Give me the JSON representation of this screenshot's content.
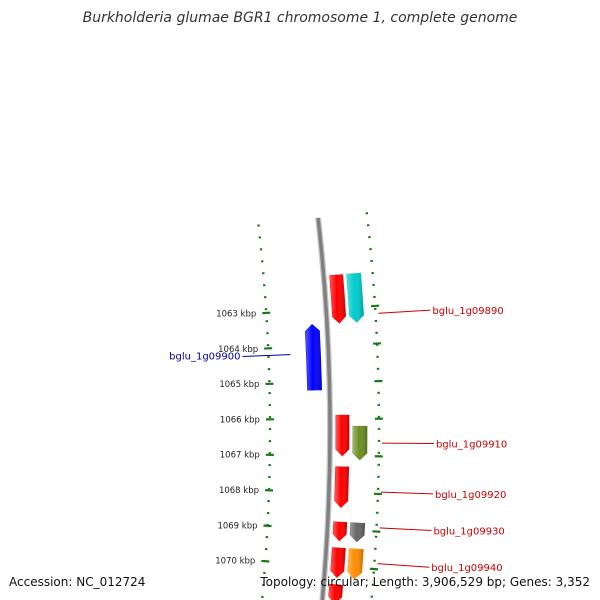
{
  "title": "Burkholderia glumae BGR1 chromosome 1, complete genome",
  "footer": {
    "accession": "Accession: NC_012724",
    "info": "Topology: circular; Length: 3,906,529 bp; Genes: 3,352"
  },
  "colors": {
    "backbone": "#808080",
    "tick": "#1a7a1a",
    "label_red": "#cc0000",
    "label_blue": "#000099"
  },
  "ticks": [
    {
      "kbp": 1063,
      "label": "1063 kbp"
    },
    {
      "kbp": 1064,
      "label": "1064 kbp"
    },
    {
      "kbp": 1065,
      "label": "1065 kbp"
    },
    {
      "kbp": 1066,
      "label": "1066 kbp"
    },
    {
      "kbp": 1067,
      "label": "1067 kbp"
    },
    {
      "kbp": 1068,
      "label": "1068 kbp"
    },
    {
      "kbp": 1069,
      "label": "1069 kbp"
    },
    {
      "kbp": 1070,
      "label": "1070 kbp"
    }
  ],
  "features": [
    {
      "type": "gene",
      "strand": "+",
      "start_kbp": 1062.1,
      "end_kbp": 1063.4,
      "color": "#ff0000"
    },
    {
      "type": "cds",
      "strand": "+",
      "start_kbp": 1062.1,
      "end_kbp": 1063.4,
      "color": "#00cccc"
    },
    {
      "type": "gene",
      "strand": "-",
      "start_kbp": 1063.4,
      "end_kbp": 1065.2,
      "color": "#0000ff"
    },
    {
      "type": "gene",
      "strand": "+",
      "start_kbp": 1065.9,
      "end_kbp": 1067.0,
      "color": "#ff0000"
    },
    {
      "type": "cds",
      "strand": "+",
      "start_kbp": 1066.2,
      "end_kbp": 1067.1,
      "color": "#6b8e23"
    },
    {
      "type": "gene",
      "strand": "+",
      "start_kbp": 1067.3,
      "end_kbp": 1068.4,
      "color": "#ff0000"
    },
    {
      "type": "gene",
      "strand": "+",
      "start_kbp": 1068.8,
      "end_kbp": 1069.3,
      "color": "#ff0000"
    },
    {
      "type": "cds",
      "strand": "+",
      "start_kbp": 1068.8,
      "end_kbp": 1069.3,
      "color": "#666666"
    },
    {
      "type": "gene",
      "strand": "+",
      "start_kbp": 1069.5,
      "end_kbp": 1070.3,
      "color": "#ff0000"
    },
    {
      "type": "cds",
      "strand": "+",
      "start_kbp": 1069.5,
      "end_kbp": 1070.3,
      "color": "#ff8c00"
    },
    {
      "type": "gene",
      "strand": "+",
      "start_kbp": 1070.5,
      "end_kbp": 1071.0,
      "color": "#ff0000"
    }
  ],
  "labels": [
    {
      "text": "bglu_1g09890",
      "kbp": 1063.2,
      "side": "right",
      "color": "#cc0000"
    },
    {
      "text": "bglu_1g09900",
      "kbp": 1064.2,
      "side": "left",
      "color": "#000099"
    },
    {
      "text": "bglu_1g09910",
      "kbp": 1066.65,
      "side": "right",
      "color": "#cc0000"
    },
    {
      "text": "bglu_1g09920",
      "kbp": 1067.95,
      "side": "right",
      "color": "#cc0000"
    },
    {
      "text": "bglu_1g09930",
      "kbp": 1068.9,
      "side": "right",
      "color": "#cc0000"
    },
    {
      "text": "bglu_1g09940",
      "kbp": 1069.85,
      "side": "right",
      "color": "#cc0000"
    }
  ]
}
